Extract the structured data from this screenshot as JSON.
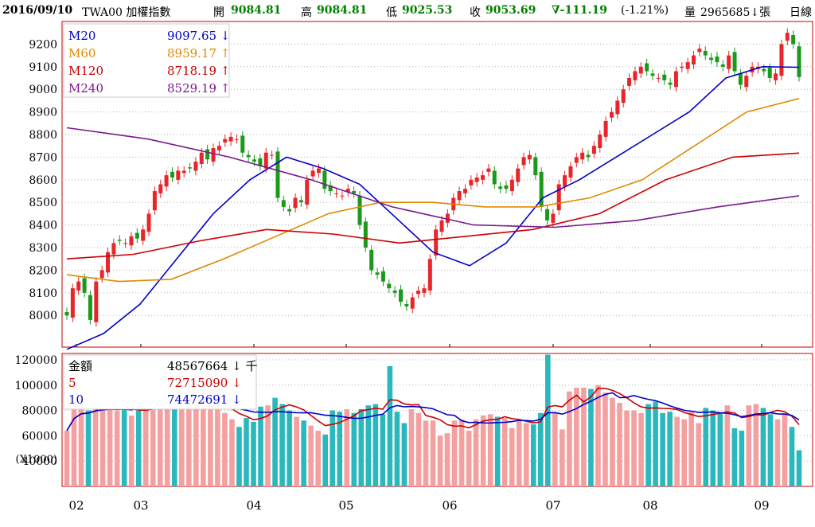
{
  "header": {
    "date": "2016/09/10",
    "symbol": "TWA00 加權指數",
    "open_label": "開",
    "open": "9084.81",
    "high_label": "高",
    "high": "9084.81",
    "low_label": "低",
    "low": "9025.53",
    "close_label": "收",
    "close": "9053.69",
    "change": "∇-111.19",
    "change_pct": "(-1.21%)",
    "volume_label": "量",
    "volume": "2965685↓張",
    "period": "日線"
  },
  "legend_price": [
    {
      "name": "M20",
      "value": "9097.65 ↓",
      "color": "#0000c8"
    },
    {
      "name": "M60",
      "value": "8959.17 ↑",
      "color": "#e08800"
    },
    {
      "name": "M120",
      "value": "8718.19 ↑",
      "color": "#cc0000"
    },
    {
      "name": "M240",
      "value": "8529.19 ↑",
      "color": "#7a1a8c"
    }
  ],
  "legend_volume": [
    {
      "name": "金額",
      "value": "48567664 ↓ 千",
      "color": "#000000"
    },
    {
      "name": "5",
      "value": "72715090 ↓",
      "color": "#cc0000"
    },
    {
      "name": "10",
      "value": "74472691 ↓",
      "color": "#0000c8"
    }
  ],
  "volume_unit": "(X1000)",
  "colors": {
    "up": "#e8252a",
    "down": "#1a9a1a",
    "vol_up": "#f4a0a0",
    "vol_down": "#2ab8bd",
    "frame": "#c00000",
    "grid": "#b0b0b0"
  },
  "chart_data": [
    {
      "type": "line",
      "title": "TWA00 加權指數",
      "x_ticks": [
        "02",
        "03",
        "04",
        "05",
        "06",
        "07",
        "08",
        "09"
      ],
      "y_ticks": [
        8000,
        8100,
        8200,
        8300,
        8400,
        8500,
        8600,
        8700,
        8800,
        8900,
        9000,
        9100,
        9200
      ],
      "ylim": [
        7860,
        9300
      ],
      "grid": true,
      "candles_close_approx": [
        8000,
        8120,
        8150,
        8100,
        7980,
        8150,
        8200,
        8280,
        8320,
        8330,
        8320,
        8350,
        8340,
        8380,
        8450,
        8550,
        8580,
        8620,
        8610,
        8640,
        8640,
        8650,
        8680,
        8720,
        8690,
        8740,
        8750,
        8780,
        8790,
        8780,
        8720,
        8700,
        8680,
        8660,
        8720,
        8710,
        8520,
        8480,
        8460,
        8520,
        8500,
        8600,
        8640,
        8650,
        8560,
        8550,
        8540,
        8530,
        8560,
        8540,
        8400,
        8300,
        8200,
        8180,
        8150,
        8120,
        8100,
        8060,
        8040,
        8080,
        8110,
        8120,
        8250,
        8380,
        8420,
        8450,
        8520,
        8550,
        8560,
        8600,
        8610,
        8620,
        8650,
        8580,
        8560,
        8560,
        8600,
        8650,
        8700,
        8710,
        8620,
        8480,
        8420,
        8450,
        8580,
        8620,
        8660,
        8700,
        8720,
        8700,
        8750,
        8800,
        8860,
        8900,
        8950,
        9000,
        9050,
        9080,
        9100,
        9080,
        9060,
        9050,
        9040,
        9020,
        9080,
        9100,
        9120,
        9150,
        9180,
        9150,
        9130,
        9120,
        9100,
        9150,
        9080,
        9020,
        9060,
        9100,
        9100,
        9080,
        9050,
        9070,
        9200,
        9250,
        9200,
        9054
      ],
      "series": [
        {
          "name": "M20",
          "values": [
            7850,
            7920,
            8050,
            8250,
            8450,
            8600,
            8700,
            8650,
            8580,
            8430,
            8280,
            8220,
            8320,
            8520,
            8600,
            8700,
            8800,
            8900,
            9050,
            9100,
            9097.65
          ]
        },
        {
          "name": "M60",
          "values": [
            8180,
            8150,
            8160,
            8250,
            8350,
            8450,
            8500,
            8500,
            8480,
            8480,
            8520,
            8600,
            8750,
            8900,
            8959.17
          ]
        },
        {
          "name": "M120",
          "values": [
            8250,
            8270,
            8330,
            8380,
            8360,
            8320,
            8350,
            8380,
            8450,
            8600,
            8700,
            8718.19
          ]
        },
        {
          "name": "M240",
          "values": [
            8830,
            8780,
            8700,
            8600,
            8480,
            8400,
            8390,
            8420,
            8480,
            8529.19
          ]
        }
      ]
    },
    {
      "type": "bar",
      "ylabel": "(X1000)",
      "y_ticks": [
        40000,
        60000,
        80000,
        100000,
        120000
      ],
      "ylim": [
        20000,
        125000
      ],
      "values": [
        64000,
        83000,
        85000,
        80000,
        86000,
        85000,
        84000,
        80000,
        82000,
        76000,
        80000,
        83000,
        85000,
        85000,
        85000,
        85000,
        85000,
        85000,
        85000,
        85000,
        85000,
        85000,
        78000,
        73000,
        67000,
        74000,
        71000,
        83000,
        84000,
        90000,
        85000,
        80000,
        75000,
        72000,
        68000,
        64000,
        61000,
        80000,
        79000,
        81000,
        78000,
        81000,
        84000,
        85000,
        77000,
        115000,
        79000,
        70000,
        81000,
        78000,
        72000,
        72000,
        60000,
        62000,
        72000,
        73000,
        64000,
        73000,
        76000,
        77000,
        75000,
        74000,
        66000,
        72000,
        70000,
        69000,
        78000,
        124000,
        78000,
        65000,
        95000,
        98000,
        98000,
        97000,
        100000,
        94000,
        90000,
        86000,
        80000,
        80000,
        78000,
        85000,
        87000,
        78000,
        79000,
        75000,
        73000,
        79000,
        70000,
        82000,
        80000,
        78000,
        84000,
        66000,
        64000,
        84000,
        85000,
        82000,
        77000,
        73000,
        78000,
        67000,
        48567
      ]
    }
  ]
}
